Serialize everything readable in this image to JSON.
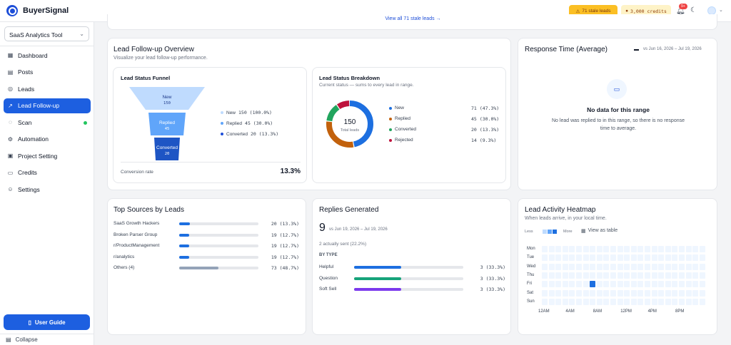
{
  "app": {
    "brand": "BuyerSignal"
  },
  "topbar": {
    "stale_leads": "71 stale leads",
    "credits": "3,000 credits",
    "notif_count": "9+"
  },
  "sidebar": {
    "project": "SaaS Analytics Tool",
    "items": [
      {
        "label": "Dashboard",
        "icon": "dashboard-icon"
      },
      {
        "label": "Posts",
        "icon": "posts-icon"
      },
      {
        "label": "Leads",
        "icon": "leads-icon"
      },
      {
        "label": "Lead Follow-up",
        "icon": "followup-icon",
        "active": true
      },
      {
        "label": "Scan",
        "icon": "scan-icon"
      },
      {
        "label": "Automation",
        "icon": "automation-icon"
      },
      {
        "label": "Project Setting",
        "icon": "project-setting-icon"
      },
      {
        "label": "Credits",
        "icon": "credits-icon"
      },
      {
        "label": "Settings",
        "icon": "settings-icon"
      }
    ],
    "user_guide": "User Guide",
    "collapse": "Collapse"
  },
  "banner": {
    "text": "View all 71 stale leads →"
  },
  "overview": {
    "title": "Lead Follow-up Overview",
    "subtitle": "Visualize your lead follow-up performance.",
    "funnel": {
      "title": "Lead Status Funnel",
      "stages": [
        {
          "name": "New",
          "value": "150",
          "color": "#bfdbfe"
        },
        {
          "name": "Replied",
          "value": "45",
          "color": "#60a5fa"
        },
        {
          "name": "Converted",
          "value": "20",
          "color": "#1d4ed8"
        }
      ],
      "legend": [
        {
          "name": "New",
          "stat": "150 (100.0%)",
          "color": "#bfdbfe"
        },
        {
          "name": "Replied",
          "stat": "45 (30.0%)",
          "color": "#60a5fa"
        },
        {
          "name": "Converted",
          "stat": "20 (13.3%)",
          "color": "#1d4ed8"
        }
      ],
      "conversion_label": "Conversion rate",
      "conversion_value": "13.3%"
    },
    "breakdown": {
      "title": "Lead Status Breakdown",
      "subtitle": "Current status — sums to every lead in range.",
      "total": "150",
      "total_label": "Total leads",
      "segments": [
        {
          "name": "New",
          "count": "71",
          "pct": "(47.3%)",
          "value": 71,
          "color": "#1d6fe0"
        },
        {
          "name": "Replied",
          "count": "45",
          "pct": "(30.0%)",
          "value": 45,
          "color": "#c2610c"
        },
        {
          "name": "Converted",
          "count": "20",
          "pct": "(13.3%)",
          "value": 20,
          "color": "#22a55e"
        },
        {
          "name": "Rejected",
          "count": "14",
          "pct": "(9.3%)",
          "value": 14,
          "color": "#be123c"
        }
      ]
    }
  },
  "response": {
    "title": "Response Time (Average)",
    "compare": "vs Jun 16, 2026 – Jul 19, 2026",
    "empty_title": "No data for this range",
    "empty_text": "No lead was replied to in this range, so there is no response time to average."
  },
  "sources": {
    "title": "Top Sources by Leads",
    "rows": [
      {
        "name": "SaaS Growth Hackers",
        "stat": "20 (13.3%)",
        "pct": 13.3,
        "color": "#1d6fe0"
      },
      {
        "name": "Broken Parser Group",
        "stat": "19 (12.7%)",
        "pct": 12.7,
        "color": "#1d6fe0"
      },
      {
        "name": "r/ProductManagement",
        "stat": "19 (12.7%)",
        "pct": 12.7,
        "color": "#1d6fe0"
      },
      {
        "name": "r/analytics",
        "stat": "19 (12.7%)",
        "pct": 12.7,
        "color": "#1d6fe0"
      },
      {
        "name": "Others (4)",
        "stat": "73 (48.7%)",
        "pct": 48.7,
        "color": "#94a3b8"
      }
    ]
  },
  "replies": {
    "title": "Replies Generated",
    "count": "9",
    "compare": "vs Jun 19, 2026 – Jul 19, 2026",
    "sent": "2 actually sent (22.2%)",
    "by_type_label": "BY TYPE",
    "types": [
      {
        "name": "Helpful",
        "stat": "3 (33.3%)",
        "pct": 33.3,
        "color": "#1d6fe0"
      },
      {
        "name": "Question",
        "stat": "3 (33.3%)",
        "pct": 33.3,
        "color": "#16a37a"
      },
      {
        "name": "Soft Sell",
        "stat": "3 (33.3%)",
        "pct": 33.3,
        "color": "#7c3aed"
      }
    ]
  },
  "heatmap": {
    "title": "Lead Activity Heatmap",
    "subtitle": "When leads arrive, in your local time.",
    "less": "Less",
    "more": "More",
    "view_table": "View as table",
    "days": [
      "Mon",
      "Tue",
      "Wed",
      "Thu",
      "Fri",
      "Sat",
      "Sun"
    ],
    "hours": [
      "12AM",
      "4AM",
      "8AM",
      "12PM",
      "4PM",
      "8PM"
    ],
    "active_cell": {
      "day": "Fri",
      "hour": 7
    },
    "base_color": "#eff6ff",
    "active_color": "#1d6fe0"
  }
}
